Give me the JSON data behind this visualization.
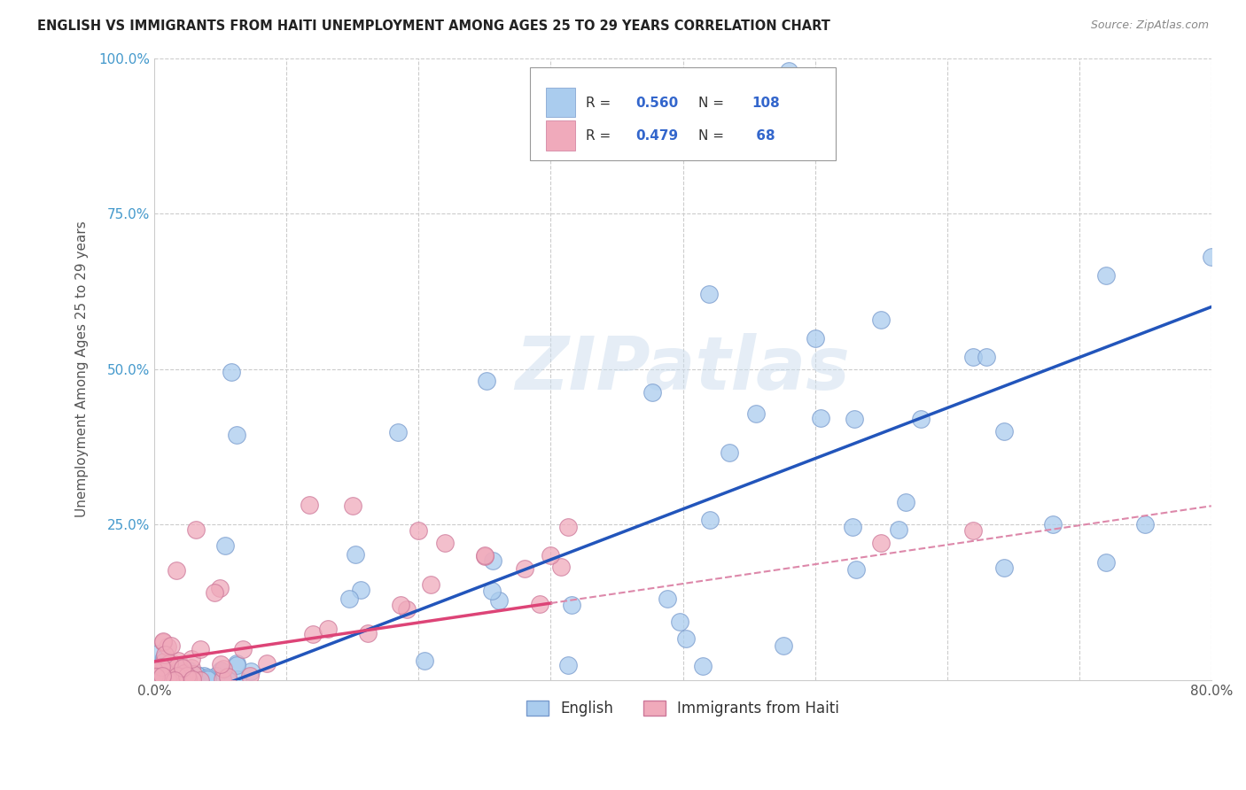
{
  "title": "ENGLISH VS IMMIGRANTS FROM HAITI UNEMPLOYMENT AMONG AGES 25 TO 29 YEARS CORRELATION CHART",
  "source": "Source: ZipAtlas.com",
  "ylabel": "Unemployment Among Ages 25 to 29 years",
  "xlim": [
    0.0,
    0.8
  ],
  "ylim": [
    0.0,
    1.0
  ],
  "xtick_positions": [
    0.0,
    0.1,
    0.2,
    0.3,
    0.4,
    0.5,
    0.6,
    0.7,
    0.8
  ],
  "xticklabels": [
    "0.0%",
    "",
    "",
    "",
    "",
    "",
    "",
    "",
    "80.0%"
  ],
  "ytick_positions": [
    0.0,
    0.25,
    0.5,
    0.75,
    1.0
  ],
  "yticklabels": [
    "",
    "25.0%",
    "50.0%",
    "75.0%",
    "100.0%"
  ],
  "english_color": "#aaccee",
  "english_edge": "#7799cc",
  "haiti_color": "#f0aabb",
  "haiti_edge": "#cc7799",
  "english_R": 0.56,
  "english_N": 108,
  "haiti_R": 0.479,
  "haiti_N": 68,
  "legend_label_english": "English",
  "legend_label_haiti": "Immigrants from Haiti",
  "watermark": "ZIPatlas",
  "background_color": "#ffffff",
  "blue_line_color": "#2255bb",
  "pink_solid_color": "#dd4477",
  "pink_dash_color": "#dd88aa",
  "title_color": "#222222",
  "source_color": "#888888",
  "ylabel_color": "#555555",
  "ytick_color": "#4499cc",
  "xtick_color": "#555555"
}
